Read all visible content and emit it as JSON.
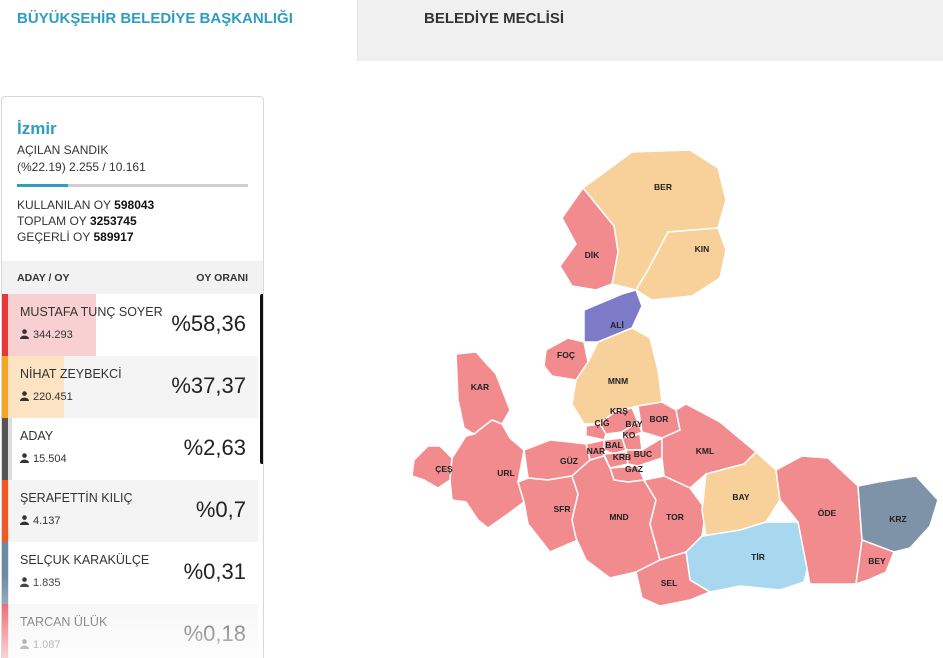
{
  "tabs": {
    "active": "BÜYÜKŞEHİR BELEDİYE BAŞKANLIĞI",
    "inactive": "BELEDİYE MECLİSİ"
  },
  "summary": {
    "city": "İzmir",
    "acilan_label": "AÇILAN SANDIK",
    "acilan_value": "(%22.19) 2.255 / 10.161",
    "progress_fraction": 0.2219,
    "kullanilan_label": "KULLANILAN OY",
    "kullanilan_value": "598043",
    "toplam_label": "TOPLAM OY",
    "toplam_value": "3253745",
    "gecerli_label": "GEÇERLİ OY",
    "gecerli_value": "589917"
  },
  "table": {
    "col1": "ADAY / OY",
    "col2": "OY ORANI"
  },
  "candidates": [
    {
      "name": "MUSTAFA TUNÇ SOYER",
      "votes": "344.293",
      "pct": "%58,36",
      "fraction": 0.5836,
      "color": "#e8363d",
      "fill": "#f9d0d1"
    },
    {
      "name": "NİHAT ZEYBEKCİ",
      "votes": "220.451",
      "pct": "%37,37",
      "fraction": 0.3737,
      "color": "#f5a623",
      "fill": "#fbe3c3"
    },
    {
      "name": "ADAY",
      "votes": "15.504",
      "pct": "%2,63",
      "fraction": 0.0263,
      "color": "#555555",
      "fill": "#dddddd"
    },
    {
      "name": "ŞERAFETTİN KILIÇ",
      "votes": "4.137",
      "pct": "%0,7",
      "fraction": 0.007,
      "color": "#ef5a24",
      "fill": "#fbd8c9"
    },
    {
      "name": "SELÇUK KARAKÜLÇE",
      "votes": "1.835",
      "pct": "%0,31",
      "fraction": 0.0031,
      "color": "#6b8aa6",
      "fill": "#dde4ec"
    },
    {
      "name": "TARCAN ÜLÜK",
      "votes": "1.087",
      "pct": "%0,18",
      "fraction": 0.0018,
      "color": "#e8363d",
      "fill": "#f9d0d1"
    }
  ],
  "colors": {
    "accent": "#2e9ec0",
    "red_party": "#f28b8e",
    "orange_party": "#f7d09a",
    "purple_party": "#7d7ac8",
    "blue_party": "#a7d8f0",
    "slate_party": "#7f93a8"
  },
  "map": {
    "districts": [
      {
        "code": "BER",
        "party": "orange_party"
      },
      {
        "code": "KIN",
        "party": "orange_party"
      },
      {
        "code": "DİK",
        "party": "red_party"
      },
      {
        "code": "ALİ",
        "party": "purple_party"
      },
      {
        "code": "FOÇ",
        "party": "red_party"
      },
      {
        "code": "MNM",
        "party": "orange_party"
      },
      {
        "code": "KAR",
        "party": "red_party"
      },
      {
        "code": "KRŞ",
        "party": "red_party"
      },
      {
        "code": "ÇİĞ",
        "party": "red_party"
      },
      {
        "code": "BAY",
        "party": "red_party"
      },
      {
        "code": "BOR",
        "party": "red_party"
      },
      {
        "code": "KO",
        "party": "red_party"
      },
      {
        "code": "BAL",
        "party": "red_party"
      },
      {
        "code": "NAR",
        "party": "red_party"
      },
      {
        "code": "KRB",
        "party": "red_party"
      },
      {
        "code": "BUC",
        "party": "red_party"
      },
      {
        "code": "GAZ",
        "party": "red_party"
      },
      {
        "code": "KML",
        "party": "red_party"
      },
      {
        "code": "ÇEŞ",
        "party": "red_party"
      },
      {
        "code": "URL",
        "party": "red_party"
      },
      {
        "code": "GÜZ",
        "party": "red_party"
      },
      {
        "code": "SFR",
        "party": "red_party"
      },
      {
        "code": "MND",
        "party": "red_party"
      },
      {
        "code": "TOR",
        "party": "red_party"
      },
      {
        "code": "BAY",
        "party": "orange_party"
      },
      {
        "code": "TİR",
        "party": "blue_party"
      },
      {
        "code": "SEL",
        "party": "red_party"
      },
      {
        "code": "ÖDE",
        "party": "red_party"
      },
      {
        "code": "KRZ",
        "party": "slate_party"
      },
      {
        "code": "BEY",
        "party": "red_party"
      }
    ]
  }
}
